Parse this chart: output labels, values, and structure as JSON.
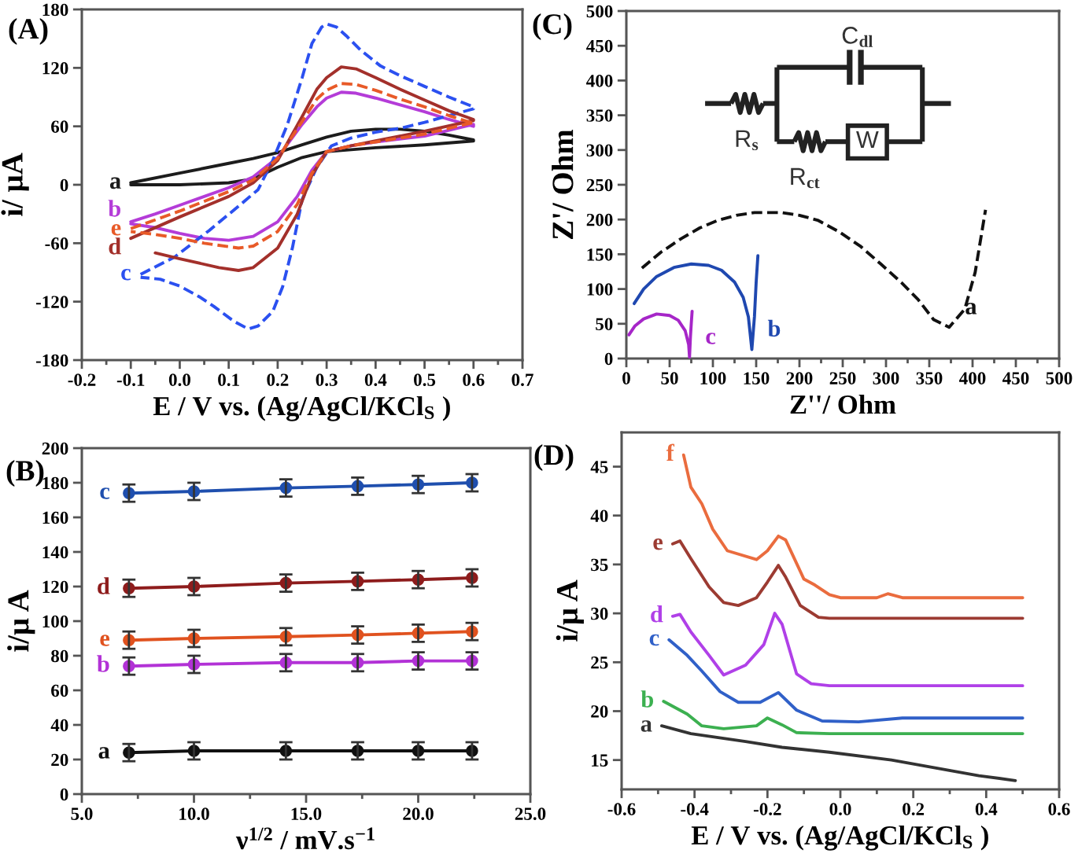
{
  "chart_data": [
    {
      "type": "line",
      "title": "(A)",
      "xlabel": "E / V vs. (Ag/AgCl/KCl$_{S}$ )",
      "ylabel": "i/ μA",
      "xlim": [
        -0.2,
        0.7
      ],
      "ylim": [
        -180,
        180
      ],
      "xticks": [
        -0.2,
        {
          "value": -0.15,
          "label": null
        },
        -0.1,
        {
          "value": -0.05,
          "label": null
        },
        {
          "value": 0,
          "label": "0.0"
        },
        {
          "value": 0.05,
          "label": null
        },
        0.1,
        {
          "value": 0.15,
          "label": null
        },
        0.2,
        {
          "value": 0.25,
          "label": null
        },
        0.3,
        {
          "value": 0.35,
          "label": null
        },
        0.4,
        {
          "value": 0.45,
          "label": null
        },
        0.5,
        {
          "value": 0.55,
          "label": null
        },
        0.6,
        {
          "value": 0.65,
          "label": null
        },
        0.7
      ],
      "yticks": [
        -180,
        -120,
        -60,
        0,
        60,
        120,
        180
      ],
      "series": [
        {
          "name": "a",
          "color": "#1c1c1c",
          "x": [
            -0.1,
            0.0,
            0.1,
            0.15,
            0.2,
            0.25,
            0.3,
            0.35,
            0.4,
            0.45,
            0.5,
            0.55,
            0.6,
            0.6,
            0.5,
            0.4,
            0.3,
            0.25,
            0.2,
            0.15,
            0.1,
            0.0,
            -0.1
          ],
          "values": [
            2,
            12,
            22,
            27,
            33,
            41,
            49,
            55,
            57,
            57,
            55,
            51,
            46,
            45,
            41,
            38,
            34,
            28,
            18,
            6,
            2,
            0,
            0
          ]
        },
        {
          "name": "b",
          "color": "#b43cd8",
          "x": [
            -0.1,
            -0.05,
            0.0,
            0.05,
            0.1,
            0.15,
            0.2,
            0.25,
            0.28,
            0.3,
            0.33,
            0.36,
            0.4,
            0.45,
            0.5,
            0.55,
            0.6,
            0.6,
            0.55,
            0.5,
            0.4,
            0.35,
            0.3,
            0.27,
            0.24,
            0.2,
            0.15,
            0.1,
            0.05,
            0.0,
            -0.05,
            -0.1
          ],
          "values": [
            -38,
            -30,
            -21,
            -12,
            -3,
            8,
            28,
            62,
            80,
            89,
            95,
            94,
            89,
            82,
            75,
            67,
            60,
            62,
            56,
            50,
            44,
            40,
            34,
            15,
            -12,
            -38,
            -53,
            -57,
            -55,
            -50,
            -44,
            -40
          ]
        },
        {
          "name": "c",
          "color": "#2b50f0",
          "line_style": "dashed",
          "x": [
            -0.08,
            -0.01,
            0.06,
            0.12,
            0.16,
            0.19,
            0.22,
            0.25,
            0.27,
            0.29,
            0.3,
            0.32,
            0.34,
            0.37,
            0.41,
            0.45,
            0.5,
            0.55,
            0.6,
            0.6,
            0.5,
            0.45,
            0.4,
            0.35,
            0.31,
            0.28,
            0.25,
            0.23,
            0.21,
            0.19,
            0.16,
            0.14,
            0.11,
            0.07,
            0.04,
            0.0,
            -0.04,
            -0.08
          ],
          "values": [
            -92,
            -74,
            -47,
            -22,
            -5,
            25,
            62,
            110,
            145,
            162,
            165,
            162,
            153,
            138,
            122,
            112,
            101,
            90,
            80,
            78,
            64,
            58,
            54,
            48,
            40,
            18,
            -15,
            -65,
            -105,
            -130,
            -145,
            -148,
            -140,
            -125,
            -115,
            -104,
            -97,
            -95
          ]
        },
        {
          "name": "d",
          "color": "#a3302b",
          "x": [
            -0.1,
            0.0,
            0.1,
            0.15,
            0.2,
            0.25,
            0.28,
            0.3,
            0.33,
            0.36,
            0.4,
            0.45,
            0.5,
            0.55,
            0.6,
            0.6,
            0.5,
            0.4,
            0.35,
            0.3,
            0.27,
            0.24,
            0.2,
            0.15,
            0.12,
            0.08,
            0.0,
            -0.05
          ],
          "values": [
            -55,
            -33,
            -12,
            2,
            25,
            70,
            98,
            110,
            121,
            119,
            110,
            98,
            87,
            76,
            67,
            66,
            55,
            45,
            40,
            34,
            10,
            -30,
            -65,
            -85,
            -88,
            -85,
            -76,
            -70
          ]
        },
        {
          "name": "e",
          "color": "#e85a28",
          "line_style": "dashed",
          "x": [
            -0.1,
            0.0,
            0.1,
            0.15,
            0.2,
            0.25,
            0.28,
            0.3,
            0.33,
            0.36,
            0.4,
            0.45,
            0.5,
            0.55,
            0.6,
            0.6,
            0.5,
            0.4,
            0.35,
            0.3,
            0.27,
            0.24,
            0.2,
            0.15,
            0.12,
            0.05,
            0.0,
            -0.05,
            -0.1
          ],
          "values": [
            -45,
            -27,
            -7,
            5,
            27,
            65,
            88,
            97,
            104,
            103,
            97,
            88,
            80,
            71,
            63,
            64,
            52,
            44,
            40,
            34,
            12,
            -20,
            -48,
            -63,
            -65,
            -60,
            -55,
            -51,
            -48
          ]
        }
      ]
    },
    {
      "type": "line",
      "title": "(C)",
      "xlabel": "Z''/ Ohm",
      "ylabel": "Z'/ Ohm",
      "xlim": [
        0,
        500
      ],
      "ylim": [
        0,
        500
      ],
      "xticks": [
        0,
        {
          "value": 25,
          "label": null
        },
        50,
        {
          "value": 75,
          "label": null
        },
        100,
        {
          "value": 125,
          "label": null
        },
        150,
        {
          "value": 175,
          "label": null
        },
        200,
        {
          "value": 225,
          "label": null
        },
        250,
        {
          "value": 275,
          "label": null
        },
        300,
        {
          "value": 325,
          "label": null
        },
        350,
        {
          "value": 375,
          "label": null
        },
        400,
        {
          "value": 425,
          "label": null
        },
        450,
        {
          "value": 475,
          "label": null
        },
        500
      ],
      "yticks": [
        0,
        50,
        100,
        150,
        200,
        250,
        300,
        350,
        400,
        450,
        500
      ],
      "annotations": [
        "R$_{s}$",
        "C$_{dl}$",
        "R$_{ct}$",
        "W"
      ],
      "series": [
        {
          "name": "a",
          "color": "#111111",
          "line_style": "dashed",
          "x": [
            18,
            40,
            64,
            85,
            106,
            127,
            148,
            179,
            200,
            221,
            245,
            270,
            294,
            318,
            337,
            355,
            373,
            391,
            403,
            415
          ],
          "values": [
            130,
            153,
            173,
            188,
            199,
            206,
            210,
            210,
            206,
            199,
            183,
            162,
            136,
            109,
            85,
            56,
            45,
            71,
            124,
            214
          ]
        },
        {
          "name": "b",
          "color": "#1f48b0",
          "x": [
            9,
            20,
            35,
            55,
            75,
            95,
            110,
            125,
            135,
            141,
            145,
            148,
            150,
            152
          ],
          "values": [
            79,
            100,
            118,
            131,
            136,
            134,
            127,
            110,
            88,
            60,
            13,
            60,
            110,
            148
          ]
        },
        {
          "name": "c",
          "color": "#a626c8",
          "x": [
            3,
            10,
            20,
            35,
            50,
            60,
            68,
            72,
            73,
            74,
            75,
            76
          ],
          "values": [
            34,
            47,
            57,
            64,
            62,
            55,
            40,
            20,
            2,
            30,
            50,
            68
          ]
        }
      ]
    },
    {
      "type": "line",
      "title": "(B)",
      "xlabel": "ν$^{1/2}$ / mV.s$^{−1}$",
      "ylabel": "i/μ A",
      "marker": "circle",
      "xlim": [
        5,
        25
      ],
      "ylim": [
        0,
        200
      ],
      "xticks": [
        {
          "value": 5,
          "label": "5.0"
        },
        {
          "value": 7.5,
          "label": null
        },
        {
          "value": 10,
          "label": "10.0"
        },
        {
          "value": 12.5,
          "label": null
        },
        {
          "value": 15,
          "label": "15.0"
        },
        {
          "value": 17.5,
          "label": null
        },
        {
          "value": 20,
          "label": "20.0"
        },
        {
          "value": 22.5,
          "label": null
        },
        {
          "value": 25,
          "label": "25.0"
        }
      ],
      "yticks": [
        0,
        20,
        40,
        60,
        80,
        100,
        120,
        140,
        160,
        180,
        200
      ],
      "x": [
        7.1,
        10.0,
        14.1,
        17.3,
        20.0,
        22.4
      ],
      "series": [
        {
          "name": "a",
          "color": "#111111",
          "values": [
            24,
            25,
            25,
            25,
            25,
            25
          ],
          "errors": [
            5,
            5,
            5,
            5,
            5,
            5
          ]
        },
        {
          "name": "b",
          "color": "#b232d6",
          "values": [
            74,
            75,
            76,
            76,
            77,
            77
          ],
          "errors": [
            5,
            5,
            5,
            5,
            5,
            5
          ]
        },
        {
          "name": "c",
          "color": "#1f4fae",
          "values": [
            174,
            175,
            177,
            178,
            179,
            180
          ],
          "errors": [
            5,
            5,
            5,
            5,
            5,
            5
          ]
        },
        {
          "name": "d",
          "color": "#8e1c1c",
          "values": [
            119,
            120,
            122,
            123,
            124,
            125
          ],
          "errors": [
            5,
            5,
            5,
            5,
            5,
            5
          ]
        },
        {
          "name": "e",
          "color": "#e0521f",
          "values": [
            89,
            90,
            91,
            92,
            93,
            94
          ],
          "errors": [
            5,
            5,
            5,
            5,
            5,
            5
          ]
        }
      ]
    },
    {
      "type": "line",
      "title": "(D)",
      "xlabel": "E / V vs. (Ag/AgCl/KCl$_{S}$ )",
      "ylabel": "i/μ A",
      "xlim": [
        -0.6,
        0.6
      ],
      "ylim": [
        12,
        48.5
      ],
      "xticks": [
        -0.6,
        {
          "value": -0.5,
          "label": null
        },
        -0.4,
        {
          "value": -0.3,
          "label": null
        },
        -0.2,
        {
          "value": -0.1,
          "label": null
        },
        {
          "value": 0,
          "label": "0.0"
        },
        {
          "value": 0.1,
          "label": null
        },
        0.2,
        {
          "value": 0.3,
          "label": null
        },
        0.4,
        {
          "value": 0.5,
          "label": null
        },
        0.6
      ],
      "yticks": [
        15,
        20,
        25,
        30,
        35,
        40,
        45
      ],
      "series": [
        {
          "name": "a",
          "color": "#333333",
          "x": [
            -0.49,
            -0.41,
            -0.26,
            -0.16,
            -0.03,
            0.14,
            0.26,
            0.38,
            0.48
          ],
          "values": [
            18.5,
            17.7,
            16.9,
            16.3,
            15.8,
            15.0,
            14.2,
            13.4,
            12.9
          ]
        },
        {
          "name": "b",
          "color": "#3cb050",
          "x": [
            -0.485,
            -0.42,
            -0.38,
            -0.32,
            -0.23,
            -0.2,
            -0.16,
            -0.12,
            -0.03,
            0.5
          ],
          "values": [
            21.0,
            19.7,
            18.5,
            18.2,
            18.5,
            19.3,
            18.6,
            17.8,
            17.7,
            17.7
          ]
        },
        {
          "name": "c",
          "color": "#3060c8",
          "x": [
            -0.47,
            -0.42,
            -0.38,
            -0.33,
            -0.28,
            -0.22,
            -0.17,
            -0.12,
            -0.05,
            0.05,
            0.17,
            0.5
          ],
          "values": [
            27.3,
            25.7,
            24.1,
            22.0,
            20.9,
            20.9,
            21.9,
            20.1,
            19.0,
            18.9,
            19.3,
            19.3
          ]
        },
        {
          "name": "d",
          "color": "#b040e8",
          "x": [
            -0.46,
            -0.44,
            -0.41,
            -0.36,
            -0.32,
            -0.26,
            -0.21,
            -0.18,
            -0.16,
            -0.12,
            -0.08,
            -0.03,
            0.5
          ],
          "values": [
            29.7,
            29.9,
            28.1,
            25.7,
            23.7,
            24.7,
            26.8,
            30.0,
            28.9,
            23.8,
            22.8,
            22.6,
            22.6
          ]
        },
        {
          "name": "e",
          "color": "#9c3b32",
          "x": [
            -0.46,
            -0.44,
            -0.41,
            -0.36,
            -0.32,
            -0.28,
            -0.23,
            -0.2,
            -0.17,
            -0.15,
            -0.11,
            -0.06,
            -0.03,
            0.5
          ],
          "values": [
            37.1,
            37.4,
            35.6,
            32.7,
            31.1,
            30.8,
            31.6,
            33.2,
            34.9,
            33.7,
            30.8,
            29.6,
            29.5,
            29.5
          ]
        },
        {
          "name": "f",
          "color": "#ea6c3e",
          "x": [
            -0.43,
            -0.41,
            -0.38,
            -0.35,
            -0.31,
            -0.23,
            -0.2,
            -0.17,
            -0.15,
            -0.1,
            -0.07,
            -0.03,
            0.0,
            0.1,
            0.13,
            0.17,
            0.5
          ],
          "values": [
            46.2,
            42.9,
            41.2,
            38.6,
            36.4,
            35.5,
            36.4,
            37.9,
            37.5,
            33.5,
            32.9,
            31.9,
            31.6,
            31.6,
            32.0,
            31.6,
            31.6
          ]
        }
      ]
    }
  ]
}
